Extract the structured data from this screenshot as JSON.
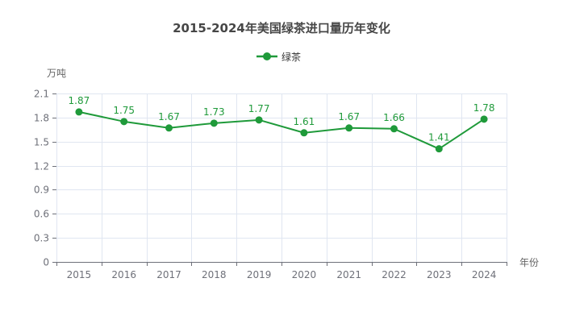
{
  "chart_data": {
    "type": "line",
    "title": "2015-2024年美国绿茶进口量历年变化",
    "xlabel": "年份",
    "ylabel": "万吨",
    "categories": [
      "2015",
      "2016",
      "2017",
      "2018",
      "2019",
      "2020",
      "2021",
      "2022",
      "2023",
      "2024"
    ],
    "series": [
      {
        "name": "绿茶",
        "color": "#1f9a3a",
        "values": [
          1.87,
          1.75,
          1.67,
          1.73,
          1.77,
          1.61,
          1.67,
          1.66,
          1.41,
          1.78
        ],
        "labels": [
          "1.87",
          "1.75",
          "1.67",
          "1.73",
          "1.77",
          "1.61",
          "1.67",
          "1.66",
          "1.41",
          "1.78"
        ]
      }
    ],
    "ylim": [
      0,
      2.1
    ],
    "yticks": [
      "0",
      "0.3",
      "0.6",
      "0.9",
      "1.2",
      "1.5",
      "1.8",
      "2.1"
    ],
    "grid": true,
    "legend_position": "top-center"
  }
}
